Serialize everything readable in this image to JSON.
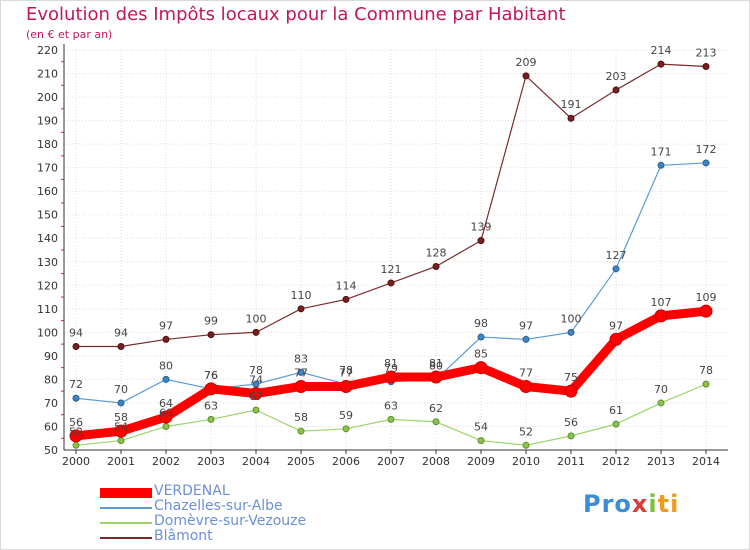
{
  "colors": {
    "VERDENAL": "#ff0000",
    "Chazelles-sur-Albe": "#5b9bd5",
    "Domèvre-sur-Vezouze": "#9cd36b",
    "Blâmont": "#7a2a2a"
  },
  "logo": {
    "parts": [
      "Pro",
      "x",
      "i",
      "ti"
    ]
  },
  "chart_data": {
    "type": "line",
    "title": "Evolution des Impôts locaux pour la Commune par Habitant",
    "subtitle": "(en € et par an)",
    "x": [
      2000,
      2001,
      2002,
      2003,
      2004,
      2005,
      2006,
      2007,
      2008,
      2009,
      2010,
      2011,
      2012,
      2013,
      2014
    ],
    "ylim": [
      50,
      220
    ],
    "yticks": [
      50,
      60,
      70,
      80,
      90,
      100,
      110,
      120,
      130,
      140,
      150,
      160,
      170,
      180,
      190,
      200,
      210,
      220
    ],
    "grid": true,
    "legend": "bottom-left",
    "series": [
      {
        "name": "VERDENAL",
        "values": [
          56,
          58,
          64,
          76,
          74,
          77,
          77,
          81,
          81,
          85,
          77,
          75,
          97,
          107,
          109
        ]
      },
      {
        "name": "Chazelles-sur-Albe",
        "values": [
          72,
          70,
          80,
          76,
          78,
          83,
          78,
          79,
          80,
          98,
          97,
          100,
          127,
          171,
          172
        ]
      },
      {
        "name": "Domèvre-sur-Vezouze",
        "values": [
          52,
          54,
          60,
          63,
          67,
          58,
          59,
          63,
          62,
          54,
          52,
          56,
          61,
          70,
          78
        ]
      },
      {
        "name": "Blâmont",
        "values": [
          94,
          94,
          97,
          99,
          100,
          110,
          114,
          121,
          128,
          139,
          209,
          191,
          203,
          214,
          213
        ]
      }
    ]
  }
}
